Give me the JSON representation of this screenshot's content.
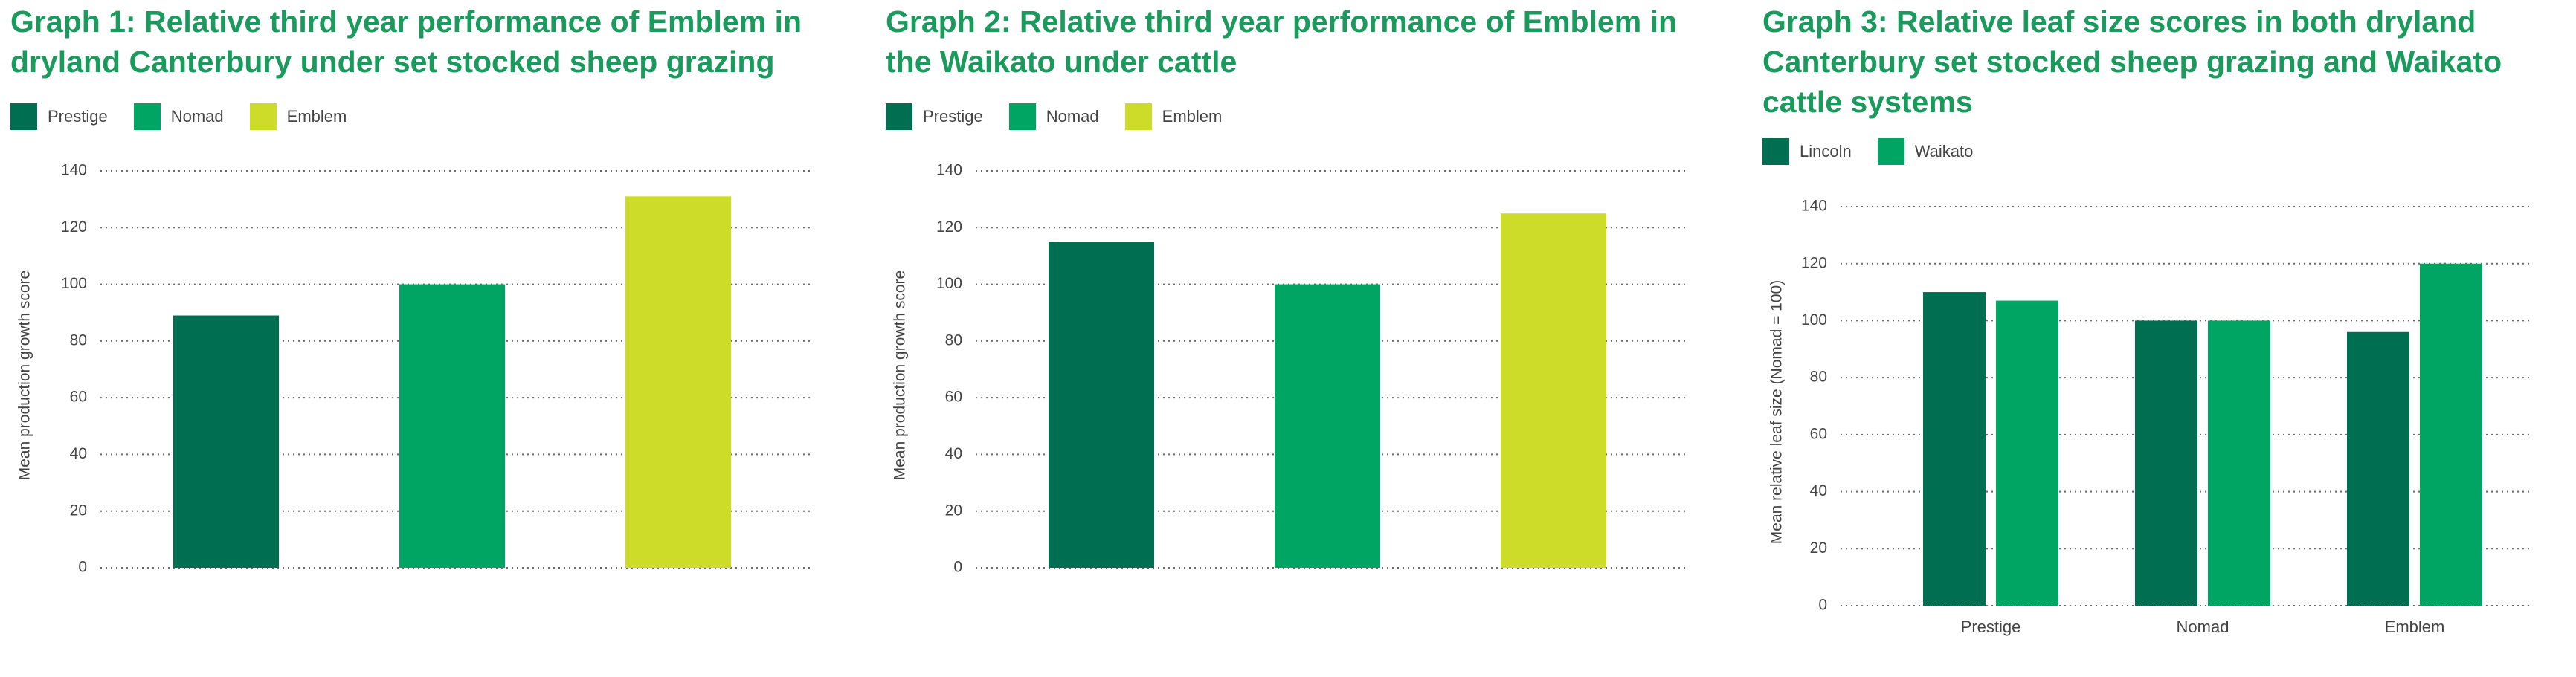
{
  "charts": [
    {
      "title_line1": "Graph 1: Relative third year performance of Emblem in",
      "title_line2": "dryland Canterbury under set stocked sheep grazing",
      "title_line3": ""
    },
    {
      "title_line1": "Graph 2: Relative third year performance of Emblem in",
      "title_line2": "the Waikato under cattle",
      "title_line3": ""
    },
    {
      "title_line1": "Graph 3: Relative leaf size scores in both dryland",
      "title_line2": "Canterbury set stocked sheep grazing and Waikato",
      "title_line3": "cattle systems"
    }
  ],
  "chart_data": [
    {
      "type": "bar",
      "title": "Graph 1: Relative third year performance of Emblem in dryland Canterbury under set stocked sheep grazing",
      "categories": [
        "Prestige",
        "Nomad",
        "Emblem"
      ],
      "values": [
        89,
        100,
        131
      ],
      "colors": [
        "#006e50",
        "#00a463",
        "#cddc28"
      ],
      "legend": [
        "Prestige",
        "Nomad",
        "Emblem"
      ],
      "legend_colors": [
        "#006e50",
        "#00a463",
        "#cddc28"
      ],
      "legend_placement": "top-left",
      "show_category_labels": false,
      "xlabel": "",
      "ylabel": "Mean production growth score",
      "ylim": [
        0,
        140
      ],
      "yticks": [
        0,
        20,
        40,
        60,
        80,
        100,
        120,
        140
      ],
      "grid": "horizontal dotted"
    },
    {
      "type": "bar",
      "title": "Graph 2: Relative third year performance of Emblem in the Waikato under cattle",
      "categories": [
        "Prestige",
        "Nomad",
        "Emblem"
      ],
      "values": [
        115,
        100,
        125
      ],
      "colors": [
        "#006e50",
        "#00a463",
        "#cddc28"
      ],
      "legend": [
        "Prestige",
        "Nomad",
        "Emblem"
      ],
      "legend_colors": [
        "#006e50",
        "#00a463",
        "#cddc28"
      ],
      "legend_placement": "top-left",
      "show_category_labels": false,
      "xlabel": "",
      "ylabel": "Mean production growth score",
      "ylim": [
        0,
        140
      ],
      "yticks": [
        0,
        20,
        40,
        60,
        80,
        100,
        120,
        140
      ],
      "grid": "horizontal dotted"
    },
    {
      "type": "bar",
      "title": "Graph 3: Relative leaf size scores in both dryland Canterbury set stocked sheep grazing and Waikato cattle systems",
      "categories": [
        "Prestige",
        "Nomad",
        "Emblem"
      ],
      "series": [
        {
          "name": "Lincoln",
          "values": [
            110,
            100,
            96
          ],
          "color": "#006e50"
        },
        {
          "name": "Waikato",
          "values": [
            107,
            100,
            120
          ],
          "color": "#00a463"
        }
      ],
      "legend": [
        "Lincoln",
        "Waikato"
      ],
      "legend_colors": [
        "#006e50",
        "#00a463"
      ],
      "legend_placement": "top-left",
      "show_category_labels": true,
      "xlabel": "",
      "ylabel": "Mean relative leaf size (Nomad = 100)",
      "ylim": [
        0,
        140
      ],
      "yticks": [
        0,
        20,
        40,
        60,
        80,
        100,
        120,
        140
      ],
      "grid": "horizontal dotted"
    }
  ]
}
